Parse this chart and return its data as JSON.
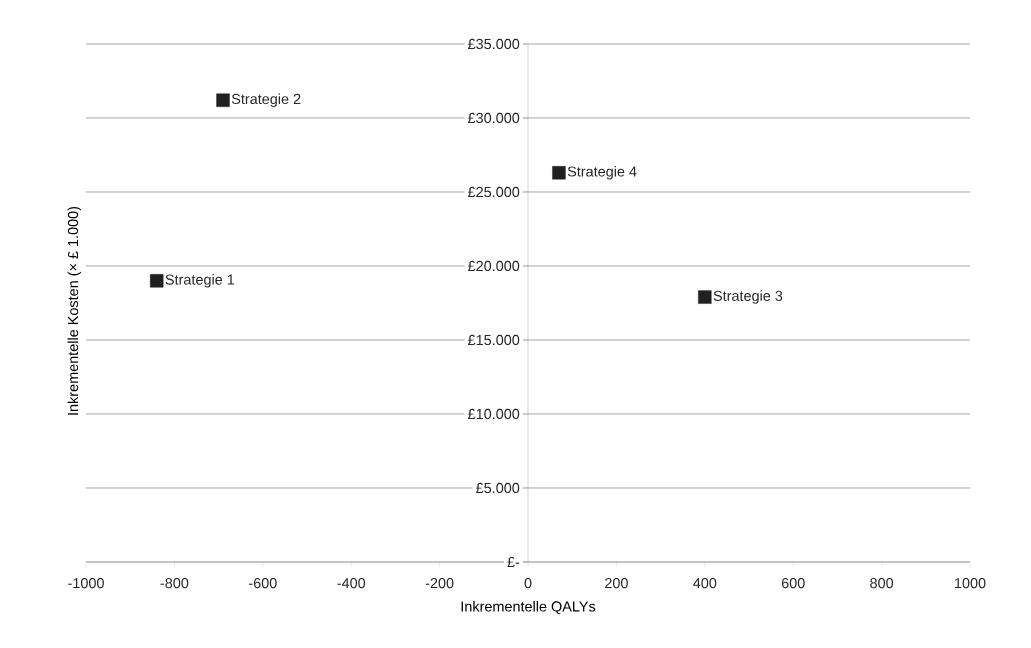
{
  "chart_data": {
    "type": "scatter",
    "xlabel": "Inkrementelle QALYs",
    "ylabel": "Inkrementelle Kosten (× £ 1.000)",
    "xlim": [
      -1000,
      1000
    ],
    "ylim": [
      0,
      35000
    ],
    "xticks": [
      -1000,
      -800,
      -600,
      -400,
      -200,
      0,
      200,
      400,
      600,
      800,
      1000
    ],
    "yticks": [
      {
        "value": 0,
        "label": "£-"
      },
      {
        "value": 5000,
        "label": "£5.000"
      },
      {
        "value": 10000,
        "label": "£10.000"
      },
      {
        "value": 15000,
        "label": "£15.000"
      },
      {
        "value": 20000,
        "label": "£20.000"
      },
      {
        "value": 25000,
        "label": "£25.000"
      },
      {
        "value": 30000,
        "label": "£30.000"
      },
      {
        "value": 35000,
        "label": "£35.000"
      }
    ],
    "grid": "y",
    "marker": "square",
    "series": [
      {
        "name": "Strategie 1",
        "x": [
          -840
        ],
        "values": [
          19000
        ],
        "color": "#231f20"
      },
      {
        "name": "Strategie 2",
        "x": [
          -690
        ],
        "values": [
          31200
        ],
        "color": "#231f20"
      },
      {
        "name": "Strategie 3",
        "x": [
          400
        ],
        "values": [
          17900
        ],
        "color": "#231f20"
      },
      {
        "name": "Strategie 4",
        "x": [
          70
        ],
        "values": [
          26300
        ],
        "color": "#231f20"
      }
    ]
  }
}
